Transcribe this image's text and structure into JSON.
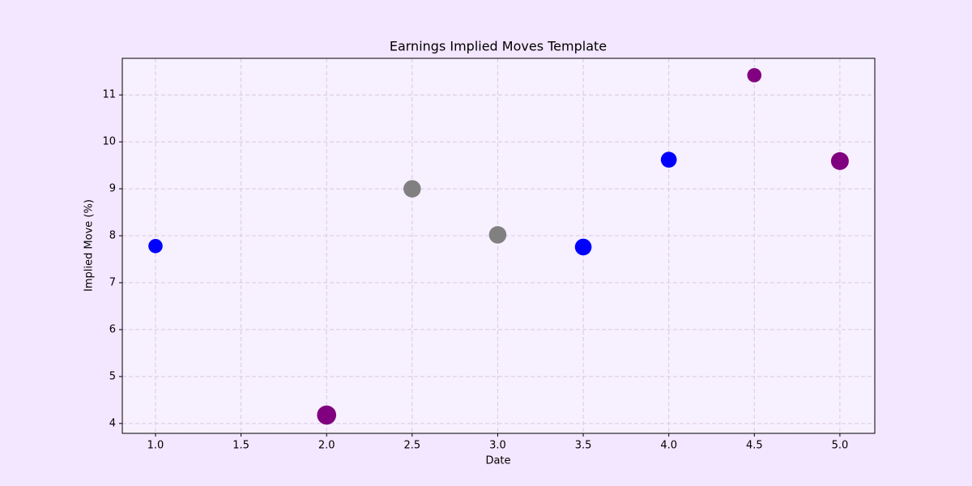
{
  "chart_data": {
    "type": "scatter",
    "title": "Earnings Implied Moves Template",
    "x_label": "Date",
    "y_label": "Implied Move (%)",
    "x": [
      1.0,
      2.0,
      2.5,
      3.0,
      3.5,
      4.0,
      4.5,
      5.0
    ],
    "values": [
      7.78,
      4.18,
      9.0,
      8.02,
      7.76,
      9.62,
      11.42,
      9.59
    ],
    "sizes": [
      160,
      290,
      240,
      240,
      220,
      200,
      160,
      250
    ],
    "colors": [
      "#0000ff",
      "#800080",
      "#808080",
      "#808080",
      "#0000ff",
      "#0000ff",
      "#800080",
      "#800080"
    ],
    "xlim": [
      0.806,
      5.204
    ],
    "ylim": [
      3.79,
      11.78
    ],
    "xticks": [
      {
        "value": 1,
        "label": "1.0"
      },
      {
        "value": 1.5,
        "label": "1.5"
      },
      {
        "value": 2,
        "label": "2.0"
      },
      {
        "value": 2.5,
        "label": "2.5"
      },
      {
        "value": 3,
        "label": "3.0"
      },
      {
        "value": 3.5,
        "label": "3.5"
      },
      {
        "value": 4,
        "label": "4.0"
      },
      {
        "value": 4.5,
        "label": "4.5"
      },
      {
        "value": 5,
        "label": "5.0"
      }
    ],
    "yticks": [
      4,
      5,
      6,
      7,
      8,
      9,
      10,
      11
    ],
    "grid": true
  }
}
